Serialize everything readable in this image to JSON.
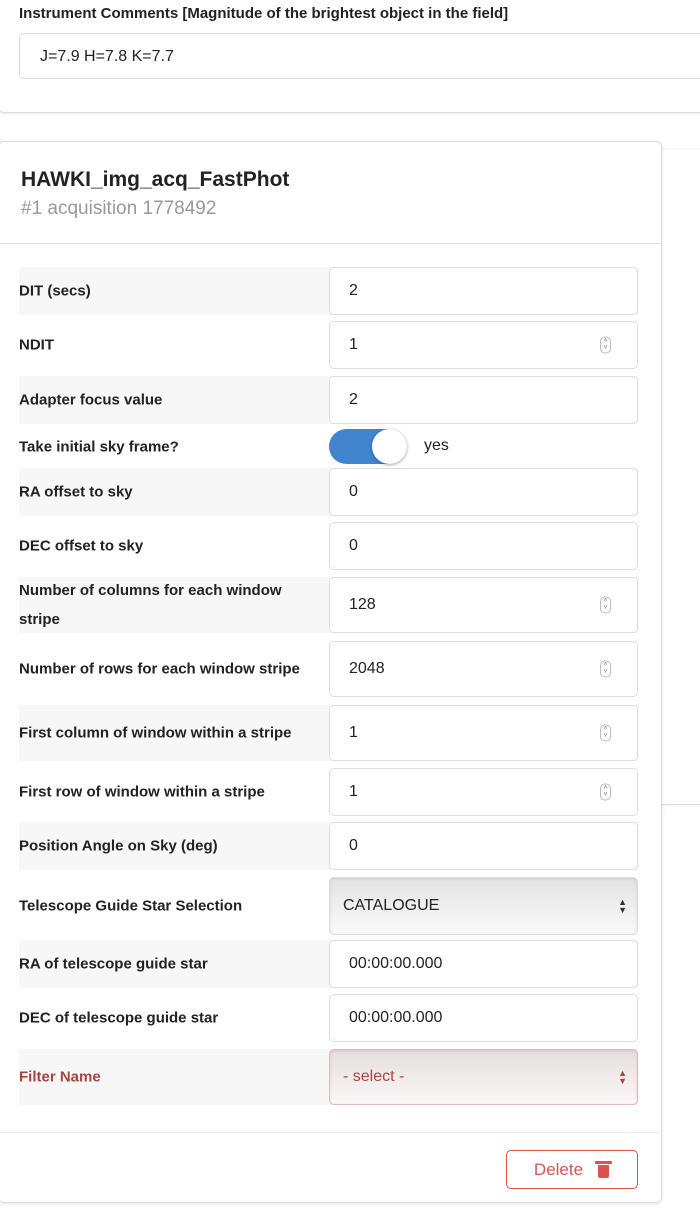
{
  "instrument_comments": {
    "label": "Instrument Comments [Magnitude of the brightest object in the field]",
    "value": "J=7.9 H=7.8 K=7.7"
  },
  "template": {
    "title": "HAWKI_img_acq_FastPhot",
    "subtitle": "#1 acquisition 1778492",
    "rows": [
      {
        "label": "DIT (secs)",
        "value": "2",
        "type": "text"
      },
      {
        "label": "NDIT",
        "value": "1",
        "type": "number"
      },
      {
        "label": "Adapter focus value",
        "value": "2",
        "type": "text"
      },
      {
        "label": "Take initial sky frame?",
        "value": "yes",
        "type": "toggle",
        "on": true
      },
      {
        "label": "RA offset to sky",
        "value": "0",
        "type": "text"
      },
      {
        "label": "DEC offset to sky",
        "value": "0",
        "type": "text"
      },
      {
        "label": "Number of columns for each window stripe",
        "value": "128",
        "type": "number"
      },
      {
        "label": "Number of rows for each window stripe",
        "value": "2048",
        "type": "number"
      },
      {
        "label": "First column of window within a stripe",
        "value": "1",
        "type": "number"
      },
      {
        "label": "First row of window within a stripe",
        "value": "1",
        "type": "number"
      },
      {
        "label": "Position Angle on Sky (deg)",
        "value": "0",
        "type": "text"
      },
      {
        "label": "Telescope Guide Star Selection",
        "value": "CATALOGUE",
        "type": "select"
      },
      {
        "label": "RA of telescope guide star",
        "value": "00:00:00.000",
        "type": "text"
      },
      {
        "label": "DEC of telescope guide star",
        "value": "00:00:00.000",
        "type": "text"
      },
      {
        "label": "Filter Name",
        "value": "- select -",
        "type": "select",
        "error": true
      }
    ],
    "delete_label": "Delete"
  },
  "colors": {
    "toggle_on": "#4285cf",
    "error": "#a94442",
    "danger": "#d9534f"
  }
}
